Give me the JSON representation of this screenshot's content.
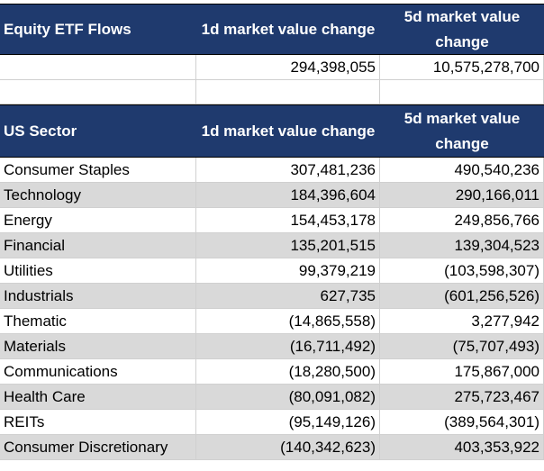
{
  "flows_table": {
    "header": {
      "col1": "Equity ETF Flows",
      "col2": "1d market value change",
      "col3": "5d market value change"
    },
    "total": {
      "col2": "294,398,055",
      "col3": "10,575,278,700"
    }
  },
  "sector_table": {
    "header": {
      "col1": "US Sector",
      "col2": "1d market value change",
      "col3": "5d market value change"
    },
    "rows": [
      {
        "sector": "Consumer Staples",
        "d1": "307,481,236",
        "d5": "490,540,236"
      },
      {
        "sector": "Technology",
        "d1": "184,396,604",
        "d5": "290,166,011"
      },
      {
        "sector": "Energy",
        "d1": "154,453,178",
        "d5": "249,856,766"
      },
      {
        "sector": "Financial",
        "d1": "135,201,515",
        "d5": "139,304,523"
      },
      {
        "sector": "Utilities",
        "d1": "99,379,219",
        "d5": "(103,598,307)"
      },
      {
        "sector": "Industrials",
        "d1": "627,735",
        "d5": "(601,256,526)"
      },
      {
        "sector": "Thematic",
        "d1": "(14,865,558)",
        "d5": "3,277,942"
      },
      {
        "sector": "Materials",
        "d1": "(16,711,492)",
        "d5": "(75,707,493)"
      },
      {
        "sector": "Communications",
        "d1": "(18,280,500)",
        "d5": "175,867,000"
      },
      {
        "sector": "Health Care",
        "d1": "(80,091,082)",
        "d5": "275,723,467"
      },
      {
        "sector": "REITs",
        "d1": "(95,149,126)",
        "d5": "(389,564,301)"
      },
      {
        "sector": "Consumer Discretionary",
        "d1": "(140,342,623)",
        "d5": "403,353,922"
      }
    ]
  }
}
